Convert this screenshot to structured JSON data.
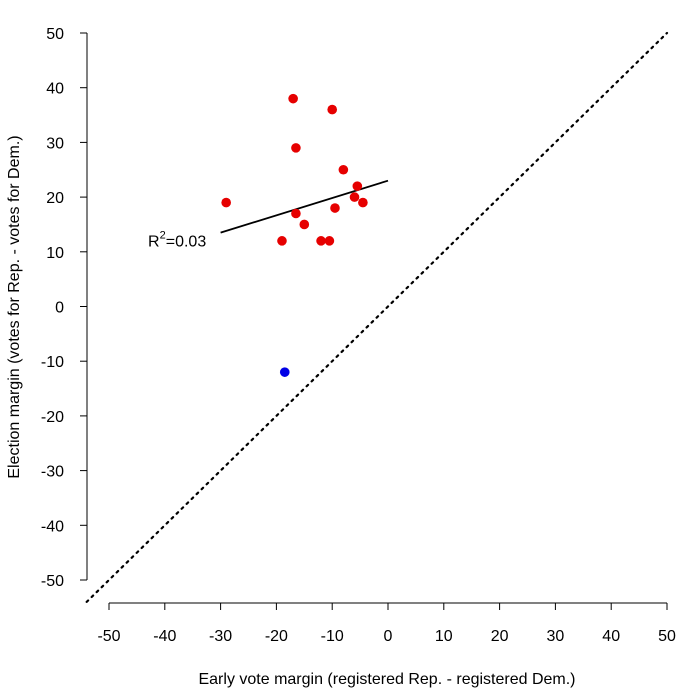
{
  "chart_data": {
    "type": "scatter",
    "title": "",
    "xlabel": "Early vote margin (registered Rep. - registered Dem.)",
    "ylabel": "Election margin (votes for Rep. - votes for Dem.)",
    "xlim": [
      -50,
      50
    ],
    "ylim": [
      -50,
      50
    ],
    "xticks": [
      -50,
      -40,
      -30,
      -20,
      -10,
      0,
      10,
      20,
      30,
      40,
      50
    ],
    "yticks": [
      -50,
      -40,
      -30,
      -20,
      -10,
      0,
      10,
      20,
      30,
      40,
      50
    ],
    "grid": false,
    "legend": null,
    "series": [
      {
        "name": "red",
        "color": "#e60000",
        "points": [
          {
            "x": -29,
            "y": 19
          },
          {
            "x": -17,
            "y": 38
          },
          {
            "x": -16.5,
            "y": 29
          },
          {
            "x": -10,
            "y": 36
          },
          {
            "x": -8,
            "y": 25
          },
          {
            "x": -5.5,
            "y": 22
          },
          {
            "x": -6,
            "y": 20
          },
          {
            "x": -4.5,
            "y": 19
          },
          {
            "x": -9.5,
            "y": 18
          },
          {
            "x": -16.5,
            "y": 17
          },
          {
            "x": -15,
            "y": 15
          },
          {
            "x": -19,
            "y": 12
          },
          {
            "x": -12,
            "y": 12
          },
          {
            "x": -10.5,
            "y": 12
          }
        ]
      },
      {
        "name": "blue",
        "color": "#0000e6",
        "points": [
          {
            "x": -18.5,
            "y": -12
          }
        ]
      }
    ],
    "fit_line": {
      "x1": -30,
      "y1": 13.5,
      "x2": 0,
      "y2": 23,
      "color": "#000000"
    },
    "reference_line": {
      "x1": -54,
      "y1": -54,
      "x2": 50,
      "y2": 50,
      "style": "dotted",
      "color": "#000000"
    },
    "annotation": {
      "base": "R",
      "superscript": "2",
      "text": "=0.03",
      "x": -43,
      "y": 11
    }
  }
}
